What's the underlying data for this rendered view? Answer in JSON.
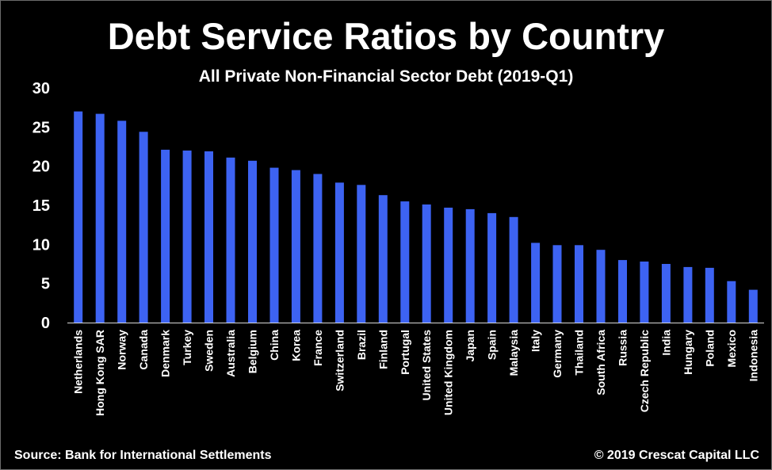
{
  "colors": {
    "background": "#000000",
    "bar": "#3d63f2",
    "text": "#ffffff",
    "axis": "#d9d9d9"
  },
  "footer": {
    "source": "Source: Bank for International Settlements",
    "copyright": "© 2019 Crescat Capital LLC"
  },
  "chart_data": {
    "type": "bar",
    "title": "Debt Service Ratios by Country",
    "subtitle": "All Private Non-Financial Sector Debt (2019-Q1)",
    "xlabel": "",
    "ylabel": "",
    "ylim": [
      0,
      30
    ],
    "yticks": [
      0,
      5,
      10,
      15,
      20,
      25,
      30
    ],
    "grid": false,
    "legend": "none",
    "categories": [
      "Netherlands",
      "Hong Kong SAR",
      "Norway",
      "Canada",
      "Denmark",
      "Turkey",
      "Sweden",
      "Australia",
      "Belgium",
      "China",
      "Korea",
      "France",
      "Switzerland",
      "Brazil",
      "Finland",
      "Portugal",
      "United States",
      "United Kingdom",
      "Japan",
      "Spain",
      "Malaysia",
      "Italy",
      "Germany",
      "Thailand",
      "South Africa",
      "Russia",
      "Czech Republic",
      "India",
      "Hungary",
      "Poland",
      "Mexico",
      "Indonesia"
    ],
    "values": [
      27.0,
      26.7,
      25.8,
      24.4,
      22.1,
      22.0,
      21.9,
      21.1,
      20.7,
      19.8,
      19.5,
      19.0,
      17.9,
      17.6,
      16.3,
      15.5,
      15.1,
      14.7,
      14.5,
      14.0,
      13.5,
      10.2,
      9.9,
      9.9,
      9.3,
      8.0,
      7.8,
      7.5,
      7.1,
      7.0,
      5.3,
      4.2
    ]
  }
}
